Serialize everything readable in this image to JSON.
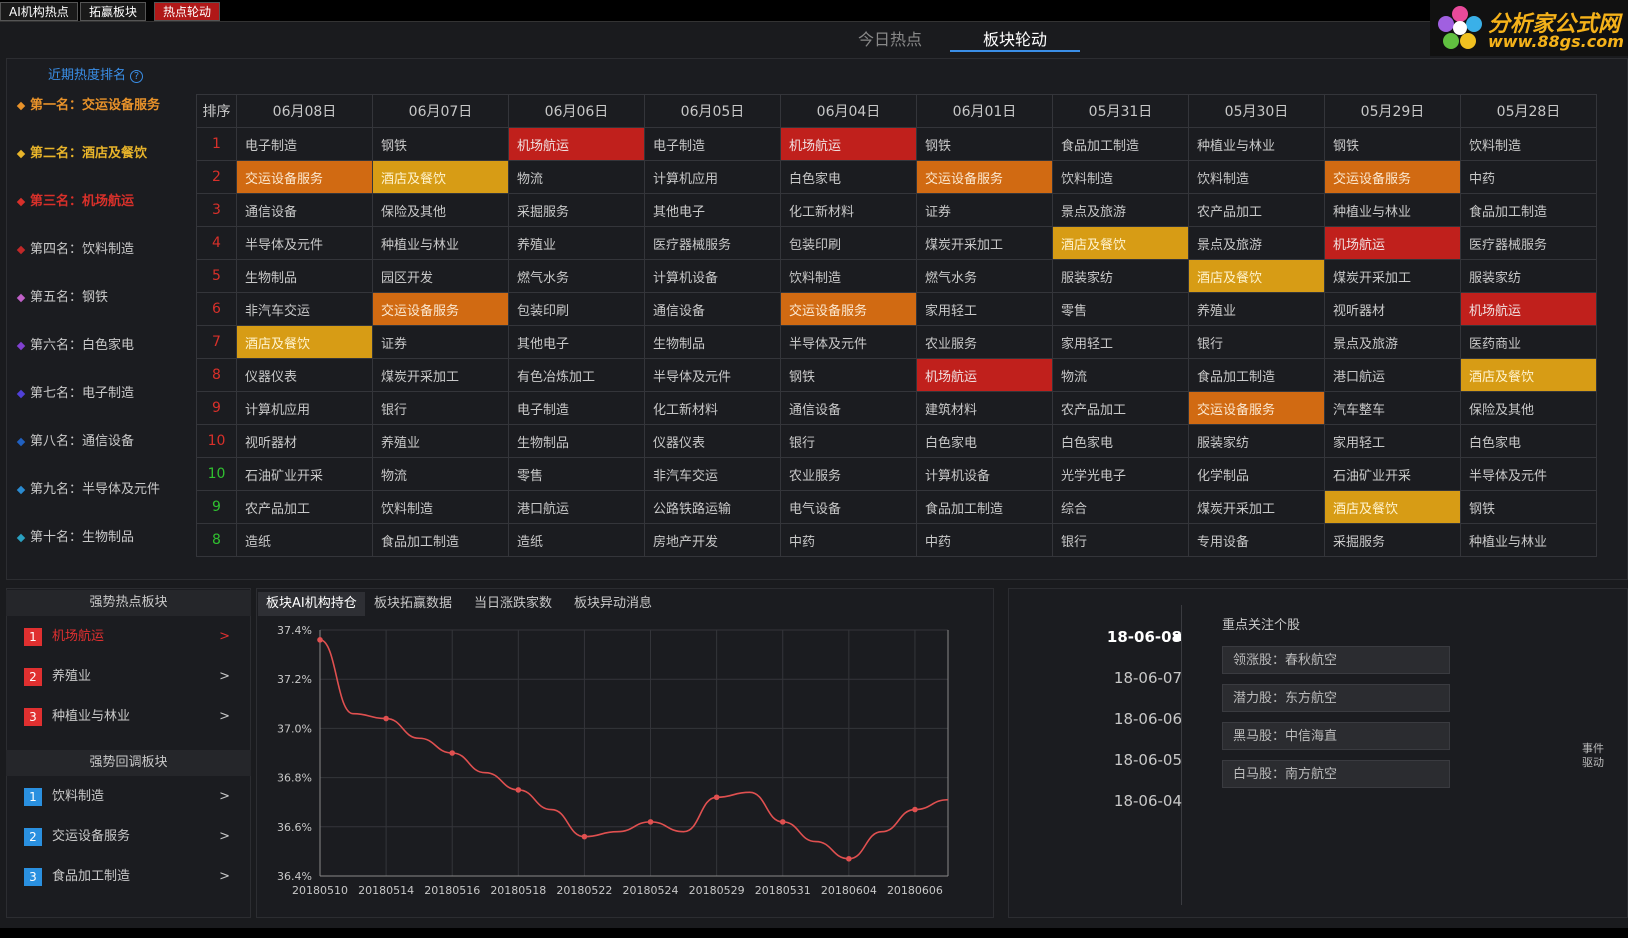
{
  "top_tabs": [
    "AI机构热点",
    "拓赢板块",
    "热点轮动"
  ],
  "logo": {
    "title": "分析家公式网",
    "url": "www.88gs.com"
  },
  "main_tabs": [
    "今日热点",
    "板块轮动"
  ],
  "rank": {
    "title": "近期热度排名",
    "help": "?",
    "items": [
      {
        "label": "第一名：交运设备服务",
        "color": "#e8922a"
      },
      {
        "label": "第二名：酒店及餐饮",
        "color": "#e8b42a"
      },
      {
        "label": "第三名：机场航运",
        "color": "#d8302a"
      },
      {
        "label": "第四名：饮料制造",
        "color": "#c02828"
      },
      {
        "label": "第五名：钢铁",
        "color": "#c060c8"
      },
      {
        "label": "第六名：白色家电",
        "color": "#8040d0"
      },
      {
        "label": "第七名：电子制造",
        "color": "#5040d8"
      },
      {
        "label": "第八名：通信设备",
        "color": "#2060c0"
      },
      {
        "label": "第九名：半导体及元件",
        "color": "#2a8ad0"
      },
      {
        "label": "第十名：生物制品",
        "color": "#2aa0c0"
      }
    ]
  },
  "table": {
    "headers": [
      "排序",
      "06月08日",
      "06月07日",
      "06月06日",
      "06月05日",
      "06月04日",
      "06月01日",
      "05月31日",
      "05月30日",
      "05月29日",
      "05月28日"
    ],
    "rows": [
      {
        "n": "1",
        "nc": "#d8302a",
        "cells": [
          "电子制造",
          "钢铁",
          "机场航运",
          "电子制造",
          "机场航运",
          "钢铁",
          "食品加工制造",
          "种植业与林业",
          "钢铁",
          "饮料制造"
        ],
        "hl": [
          "",
          "",
          "r",
          "",
          "r",
          "",
          "",
          "",
          "",
          ""
        ]
      },
      {
        "n": "2",
        "nc": "#d8302a",
        "cells": [
          "交运设备服务",
          "酒店及餐饮",
          "物流",
          "计算机应用",
          "白色家电",
          "交运设备服务",
          "饮料制造",
          "饮料制造",
          "交运设备服务",
          "中药"
        ],
        "hl": [
          "o",
          "y",
          "",
          "",
          "",
          "o",
          "",
          "",
          "o",
          ""
        ]
      },
      {
        "n": "3",
        "nc": "#d8302a",
        "cells": [
          "通信设备",
          "保险及其他",
          "采掘服务",
          "其他电子",
          "化工新材料",
          "证券",
          "景点及旅游",
          "农产品加工",
          "种植业与林业",
          "食品加工制造"
        ],
        "hl": [
          "",
          "",
          "",
          "",
          "",
          "",
          "",
          "",
          "",
          ""
        ]
      },
      {
        "n": "4",
        "nc": "#d8302a",
        "cells": [
          "半导体及元件",
          "种植业与林业",
          "养殖业",
          "医疗器械服务",
          "包装印刷",
          "煤炭开采加工",
          "酒店及餐饮",
          "景点及旅游",
          "机场航运",
          "医疗器械服务"
        ],
        "hl": [
          "",
          "",
          "",
          "",
          "",
          "",
          "y",
          "",
          "r",
          ""
        ]
      },
      {
        "n": "5",
        "nc": "#d8302a",
        "cells": [
          "生物制品",
          "园区开发",
          "燃气水务",
          "计算机设备",
          "饮料制造",
          "燃气水务",
          "服装家纺",
          "酒店及餐饮",
          "煤炭开采加工",
          "服装家纺"
        ],
        "hl": [
          "",
          "",
          "",
          "",
          "",
          "",
          "",
          "y",
          "",
          ""
        ]
      },
      {
        "n": "6",
        "nc": "#d8302a",
        "cells": [
          "非汽车交运",
          "交运设备服务",
          "包装印刷",
          "通信设备",
          "交运设备服务",
          "家用轻工",
          "零售",
          "养殖业",
          "视听器材",
          "机场航运"
        ],
        "hl": [
          "",
          "o",
          "",
          "",
          "o",
          "",
          "",
          "",
          "",
          "r"
        ]
      },
      {
        "n": "7",
        "nc": "#d8302a",
        "cells": [
          "酒店及餐饮",
          "证券",
          "其他电子",
          "生物制品",
          "半导体及元件",
          "农业服务",
          "家用轻工",
          "银行",
          "景点及旅游",
          "医药商业"
        ],
        "hl": [
          "y",
          "",
          "",
          "",
          "",
          "",
          "",
          "",
          "",
          ""
        ]
      },
      {
        "n": "8",
        "nc": "#d8302a",
        "cells": [
          "仪器仪表",
          "煤炭开采加工",
          "有色冶炼加工",
          "半导体及元件",
          "钢铁",
          "机场航运",
          "物流",
          "食品加工制造",
          "港口航运",
          "酒店及餐饮"
        ],
        "hl": [
          "",
          "",
          "",
          "",
          "",
          "r",
          "",
          "",
          "",
          "y"
        ]
      },
      {
        "n": "9",
        "nc": "#d8302a",
        "cells": [
          "计算机应用",
          "银行",
          "电子制造",
          "化工新材料",
          "通信设备",
          "建筑材料",
          "农产品加工",
          "交运设备服务",
          "汽车整车",
          "保险及其他"
        ],
        "hl": [
          "",
          "",
          "",
          "",
          "",
          "",
          "",
          "o",
          "",
          ""
        ]
      },
      {
        "n": "10",
        "nc": "#d8302a",
        "cells": [
          "视听器材",
          "养殖业",
          "生物制品",
          "仪器仪表",
          "银行",
          "白色家电",
          "白色家电",
          "服装家纺",
          "家用轻工",
          "白色家电"
        ],
        "hl": [
          "",
          "",
          "",
          "",
          "",
          "",
          "",
          "",
          "",
          ""
        ]
      },
      {
        "n": "10",
        "nc": "#30c030",
        "cells": [
          "石油矿业开采",
          "物流",
          "零售",
          "非汽车交运",
          "农业服务",
          "计算机设备",
          "光学光电子",
          "化学制品",
          "石油矿业开采",
          "半导体及元件"
        ],
        "hl": [
          "",
          "",
          "",
          "",
          "",
          "",
          "",
          "",
          "",
          ""
        ]
      },
      {
        "n": "9",
        "nc": "#30c030",
        "cells": [
          "农产品加工",
          "饮料制造",
          "港口航运",
          "公路铁路运输",
          "电气设备",
          "食品加工制造",
          "综合",
          "煤炭开采加工",
          "酒店及餐饮",
          "钢铁"
        ],
        "hl": [
          "",
          "",
          "",
          "",
          "",
          "",
          "",
          "",
          "y",
          ""
        ]
      },
      {
        "n": "8",
        "nc": "#30c030",
        "cells": [
          "造纸",
          "食品加工制造",
          "造纸",
          "房地产开发",
          "中药",
          "中药",
          "银行",
          "专用设备",
          "采掘服务",
          "种植业与林业"
        ],
        "hl": [
          "",
          "",
          "",
          "",
          "",
          "",
          "",
          "",
          "",
          ""
        ]
      }
    ]
  },
  "strong": {
    "title": "强势热点板块",
    "items": [
      {
        "n": "1",
        "label": "机场航运",
        "active": true
      },
      {
        "n": "2",
        "label": "养殖业",
        "active": false
      },
      {
        "n": "3",
        "label": "种植业与林业",
        "active": false
      }
    ]
  },
  "pullback": {
    "title": "强势回调板块",
    "items": [
      {
        "n": "1",
        "label": "饮料制造"
      },
      {
        "n": "2",
        "label": "交运设备服务"
      },
      {
        "n": "3",
        "label": "食品加工制造"
      }
    ]
  },
  "arrow": ">",
  "chart_tabs": [
    "板块AI机构持仓",
    "板块拓赢数据",
    "当日涨跌家数",
    "板块异动消息"
  ],
  "chart_data": {
    "type": "line",
    "title": "",
    "x": [
      "20180510",
      "20180511",
      "20180514",
      "20180515",
      "20180516",
      "20180517",
      "20180518",
      "20180521",
      "20180522",
      "20180523",
      "20180524",
      "20180525",
      "20180529",
      "20180530",
      "20180531",
      "20180601",
      "20180604",
      "20180605",
      "20180606",
      "20180607"
    ],
    "xticks": [
      "20180510",
      "20180514",
      "20180516",
      "20180518",
      "20180522",
      "20180524",
      "20180529",
      "20180531",
      "20180604",
      "20180606"
    ],
    "values": [
      37.36,
      37.06,
      37.04,
      36.96,
      36.9,
      36.82,
      36.75,
      36.67,
      36.56,
      36.58,
      36.62,
      36.58,
      36.72,
      36.74,
      36.62,
      36.54,
      36.47,
      36.58,
      36.67,
      36.71
    ],
    "yticks": [
      "37.4%",
      "37.2%",
      "37.0%",
      "36.8%",
      "36.6%",
      "36.4%"
    ],
    "ylim": [
      36.4,
      37.4
    ],
    "color": "#e05050",
    "grid": true
  },
  "dates": [
    "18-06-08",
    "18-06-07",
    "18-06-06",
    "18-06-05",
    "18-06-04"
  ],
  "focus": {
    "title": "重点关注个股",
    "items": [
      "领涨股：春秋航空",
      "潜力股：东方航空",
      "黑马股：中信海直",
      "白马股：南方航空"
    ]
  },
  "event": "事件驱动"
}
